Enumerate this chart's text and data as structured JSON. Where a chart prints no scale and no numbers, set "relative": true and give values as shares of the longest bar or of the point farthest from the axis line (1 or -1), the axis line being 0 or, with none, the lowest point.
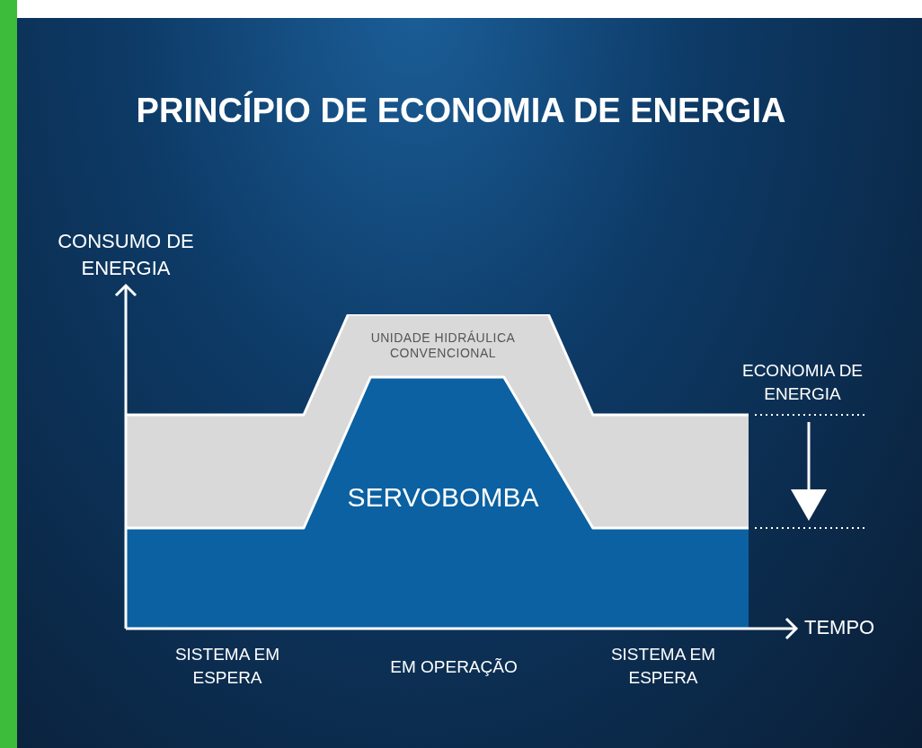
{
  "chart_data": {
    "type": "area",
    "title": "PRINCÍPIO DE ECONOMIA DE ENERGIA",
    "ylabel": "CONSUMO DE ENERGIA",
    "xlabel": "TEMPO",
    "relative": true,
    "categories": [
      null,
      null,
      null,
      null,
      null,
      null,
      null,
      null,
      null,
      null,
      null,
      null,
      null,
      null,
      null,
      null,
      null,
      null,
      null,
      null,
      null,
      null,
      null,
      null,
      null,
      null,
      null,
      null,
      null
    ],
    "series": [
      {
        "name": "UNIDADE HIDRÁULICA CONVENCIONAL",
        "color": "#d9d9d9",
        "values": [
          0.68,
          0.68,
          0.68,
          0.68,
          0.68,
          0.68,
          0.68,
          0.68,
          0.68,
          0.84,
          1,
          1,
          1,
          1,
          1,
          1,
          1,
          1,
          1,
          1,
          0.84,
          0.68,
          0.68,
          0.68,
          0.68,
          0.68,
          0.68,
          0.68,
          0.68
        ]
      },
      {
        "name": "SERVOBOMBA",
        "color": "#0b61a1",
        "values": [
          0.32,
          0.32,
          0.32,
          0.32,
          0.32,
          0.32,
          0.32,
          0.32,
          0.32,
          0.48,
          0.64,
          0.8,
          0.8,
          0.8,
          0.8,
          0.8,
          0.8,
          0.8,
          0.68,
          0.56,
          0.44,
          0.32,
          0.32,
          0.32,
          0.32,
          0.32,
          0.32,
          0.32,
          0.32
        ]
      }
    ],
    "annotations": [
      "SISTEMA EM ESPERA",
      "EM OPERAÇÃO",
      "SISTEMA EM ESPERA",
      "ECONOMIA DE ENERGIA"
    ]
  }
}
